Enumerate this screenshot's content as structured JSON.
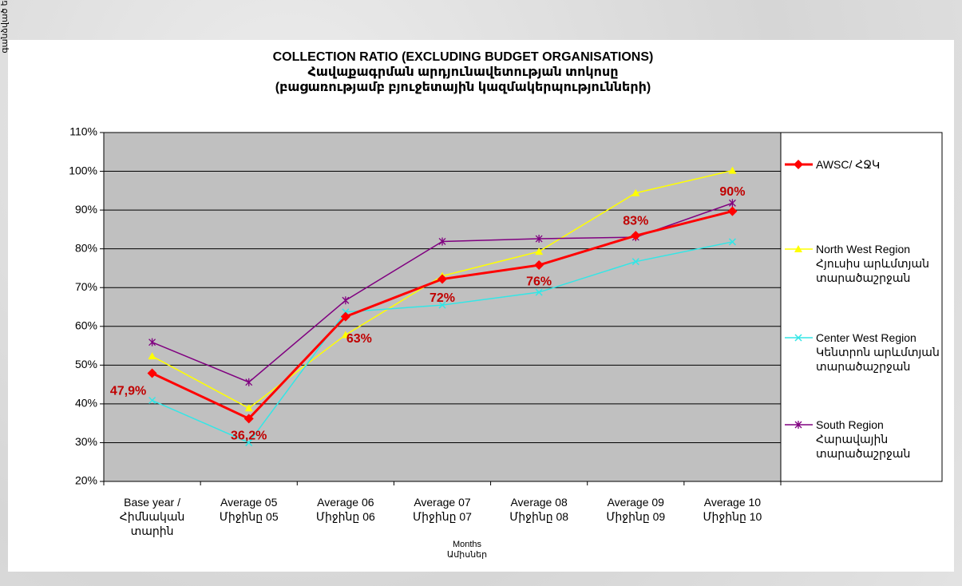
{
  "chart_data": {
    "type": "line",
    "title": "COLLECTION RATIO (EXCLUDING BUDGET ORGANISATIONS)\nՀավաքագրման արդյունավետության տոկոսը\n(բացառությամբ բյուջետային կազմակերպությունների)",
    "x_label": "Months\nԱմիսներ",
    "y_label": "% OF COLLECTION REVENU\nգանձված եկամուտի %",
    "categories": [
      "Base year /\nՀիմնական\nտարին",
      "Average 05\nՄիջինը 05",
      "Average 06\nՄիջինը 06",
      "Average 07\nՄիջինը 07",
      "Average 08\nՄիջինը 08",
      "Average 09\nՄիջինը 09",
      "Average 10\nՄիջինը 10"
    ],
    "series": [
      {
        "name": "AWSC/ ՀՋԿ",
        "color": "#ff0000",
        "marker": "diamond",
        "width": 3,
        "values": [
          47.9,
          36.2,
          62.5,
          72.2,
          75.8,
          83.4,
          89.7
        ],
        "value_labels": [
          "47,9%",
          "36,2%",
          "63%",
          "72%",
          "76%",
          "83%",
          "90%"
        ]
      },
      {
        "name": "North West Region\nՀյուսիս արևմտյան\nտարածաշրջան",
        "color": "#ffff00",
        "marker": "triangle",
        "width": 1.5,
        "values": [
          52.3,
          38.9,
          57.8,
          73.0,
          79.3,
          94.4,
          100.2
        ]
      },
      {
        "name": "Center West Region\nԿենտրոն արևմտյան\nտարածաշրջան",
        "color": "#33e6e6",
        "marker": "x",
        "width": 1.5,
        "values": [
          40.9,
          30.0,
          63.7,
          65.5,
          68.8,
          76.7,
          81.8
        ]
      },
      {
        "name": "South Region\nՀարավային\nտարածաշրջան",
        "color": "#800080",
        "marker": "star",
        "width": 1.5,
        "values": [
          55.9,
          45.6,
          66.7,
          81.9,
          82.6,
          83.0,
          91.8
        ]
      }
    ],
    "ylim": [
      20,
      110
    ],
    "yticks": [
      {
        "value": 20,
        "label": "20%"
      },
      {
        "value": 30,
        "label": "30%"
      },
      {
        "value": 40,
        "label": "40%"
      },
      {
        "value": 50,
        "label": "50%"
      },
      {
        "value": 60,
        "label": "60%"
      },
      {
        "value": 70,
        "label": "70%"
      },
      {
        "value": 80,
        "label": "80%"
      },
      {
        "value": 90,
        "label": "90%"
      },
      {
        "value": 100,
        "label": "100%"
      },
      {
        "value": 110,
        "label": "110%"
      }
    ],
    "grid": true,
    "plot_background": "#c0c0c0",
    "legend_position": "right"
  }
}
